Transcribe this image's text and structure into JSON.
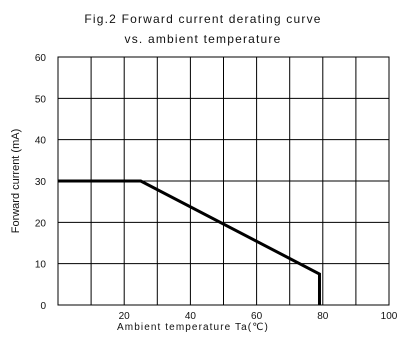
{
  "chart_data": {
    "type": "line",
    "title_lines": [
      "Fig.2  Forward current derating curve",
      "vs. ambient temperature"
    ],
    "xlabel": "Ambient temperature Ta(℃)",
    "ylabel": "Forward current (mA)",
    "xlim": [
      0,
      100
    ],
    "ylim": [
      0,
      60
    ],
    "x_grid_step": 10,
    "y_grid_step": 10,
    "grid": true,
    "x_ticks": [
      {
        "value": 20,
        "label": "20"
      },
      {
        "value": 40,
        "label": "40"
      },
      {
        "value": 60,
        "label": "60"
      },
      {
        "value": 80,
        "label": "80"
      },
      {
        "value": 100,
        "label": "100"
      }
    ],
    "y_ticks": [
      {
        "value": 0,
        "label": "0"
      },
      {
        "value": 10,
        "label": "10"
      },
      {
        "value": 20,
        "label": "20"
      },
      {
        "value": 30,
        "label": "30"
      },
      {
        "value": 40,
        "label": "40"
      },
      {
        "value": 50,
        "label": "50"
      },
      {
        "value": 60,
        "label": "60"
      }
    ],
    "series": [
      {
        "color": "#000000",
        "x": [
          0,
          25,
          79,
          79
        ],
        "y": [
          30,
          30,
          7.5,
          0
        ]
      }
    ]
  }
}
